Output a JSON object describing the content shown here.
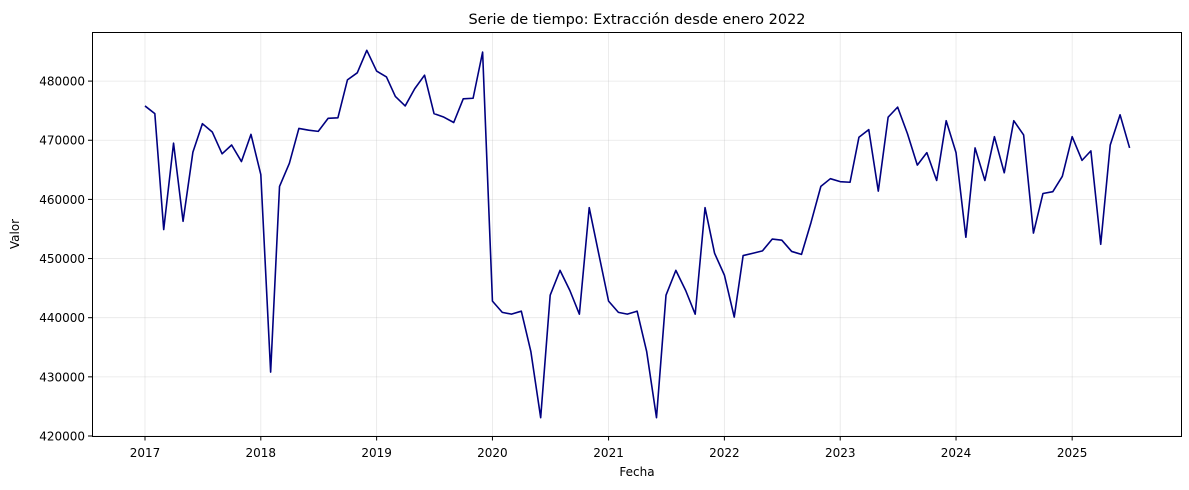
{
  "chart_data": {
    "type": "line",
    "title": "Serie de tiempo: Extracción desde enero 2022",
    "xlabel": "Fecha",
    "ylabel": "Valor",
    "grid": true,
    "line_color": "#000080",
    "xlim": [
      "2016-07-18",
      "2025-12-10"
    ],
    "ylim": [
      420000,
      488300
    ],
    "x_ticks": [
      "2017",
      "2018",
      "2019",
      "2020",
      "2021",
      "2022",
      "2023",
      "2024",
      "2025"
    ],
    "y_ticks": [
      "420000",
      "430000",
      "440000",
      "450000",
      "460000",
      "470000",
      "480000"
    ],
    "series": [
      {
        "x": [
          "2017-01",
          "2017-02",
          "2017-03",
          "2017-04",
          "2017-05",
          "2017-06",
          "2017-07",
          "2017-08",
          "2017-09",
          "2017-10",
          "2017-11",
          "2017-12",
          "2018-01",
          "2018-02",
          "2018-03",
          "2018-04",
          "2018-05",
          "2018-06",
          "2018-07",
          "2018-08",
          "2018-09",
          "2018-10",
          "2018-11",
          "2018-12",
          "2019-01",
          "2019-02",
          "2019-03",
          "2019-04",
          "2019-05",
          "2019-06",
          "2019-07",
          "2019-08",
          "2019-09",
          "2019-10",
          "2019-11",
          "2019-12",
          "2020-01",
          "2020-02",
          "2020-03",
          "2020-04",
          "2020-05",
          "2020-06",
          "2020-07",
          "2020-08",
          "2020-09",
          "2020-10",
          "2020-11",
          "2020-12",
          "2021-01",
          "2021-02",
          "2021-03",
          "2021-04",
          "2021-05",
          "2021-06",
          "2021-07",
          "2021-08",
          "2021-09",
          "2021-10",
          "2021-11",
          "2021-12",
          "2022-01",
          "2022-02",
          "2022-03",
          "2022-04",
          "2022-05",
          "2022-06",
          "2022-07",
          "2022-08",
          "2022-09",
          "2022-10",
          "2022-11",
          "2022-12",
          "2023-01",
          "2023-02",
          "2023-03",
          "2023-04",
          "2023-05",
          "2023-06",
          "2023-07",
          "2023-08",
          "2023-09",
          "2023-10",
          "2023-11",
          "2023-12",
          "2024-01",
          "2024-02",
          "2024-03",
          "2024-04",
          "2024-05",
          "2024-06",
          "2024-07",
          "2024-08",
          "2024-09",
          "2024-10",
          "2024-11",
          "2024-12",
          "2025-01",
          "2025-02",
          "2025-03",
          "2025-04",
          "2025-05",
          "2025-06",
          "2025-07"
        ],
        "values": [
          475800,
          474500,
          454900,
          469500,
          456300,
          468000,
          472800,
          471400,
          467700,
          469200,
          466400,
          471000,
          464200,
          430800,
          462200,
          466100,
          472000,
          471700,
          471500,
          473700,
          473800,
          480200,
          481400,
          485200,
          481700,
          480700,
          477400,
          475800,
          478700,
          481000,
          474500,
          473900,
          473000,
          477000,
          477100,
          484900,
          442800,
          440900,
          440600,
          441100,
          434300,
          423100,
          443800,
          448000,
          444600,
          440600,
          458600,
          450800,
          442800,
          440900,
          440600,
          441100,
          434300,
          423100,
          443800,
          448000,
          444600,
          440600,
          458600,
          450900,
          447200,
          440100,
          450500,
          450900,
          451300,
          453300,
          453100,
          451200,
          450700,
          456100,
          462200,
          463500,
          463000,
          462900,
          470500,
          471800,
          461400,
          473900,
          475600,
          471100,
          465800,
          467900,
          463200,
          473300,
          467900,
          453600,
          468700,
          463200,
          470600,
          464500,
          473300,
          470900,
          454300,
          461000,
          461300,
          463900,
          470600,
          466600,
          468200,
          452400,
          469200,
          474300,
          468700
        ]
      }
    ]
  }
}
